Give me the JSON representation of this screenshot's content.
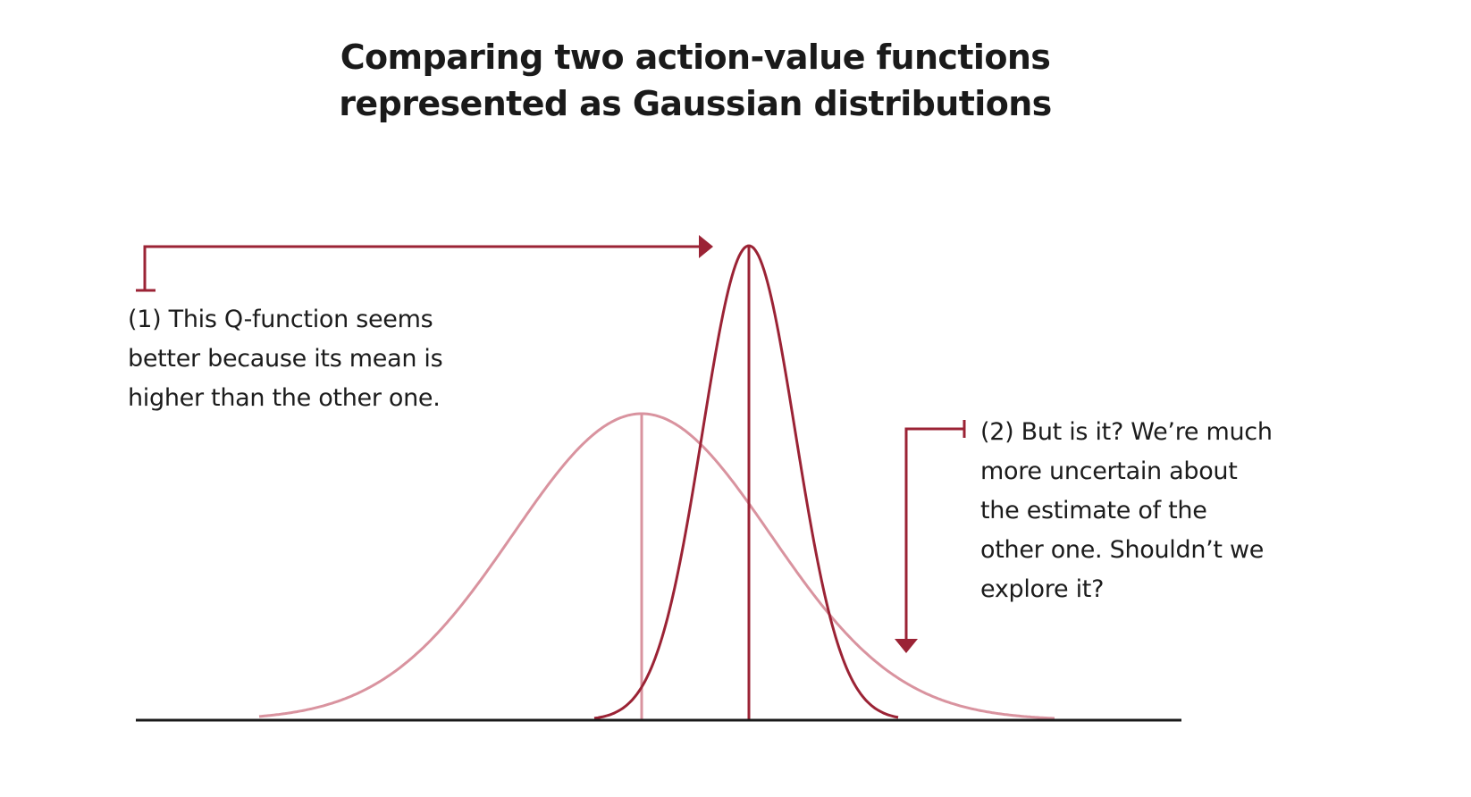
{
  "title": {
    "line1": "Comparing two action-value functions",
    "line2": "represented as Gaussian distributions"
  },
  "annotations": [
    {
      "number": "(1)",
      "lines": [
        "(1) This Q-function seems",
        "better because its mean is",
        "higher than the other one."
      ]
    },
    {
      "number": "(2)",
      "lines": [
        "(2) But is it? We’re much",
        "more uncertain about",
        "the estimate of the",
        "other one. Shouldn’t we",
        "explore it?"
      ]
    }
  ],
  "colors": {
    "narrow_curve": "#9b2335",
    "wide_curve": "#d9939f",
    "arrow": "#9b2335",
    "axis": "#1a1a1a",
    "text": "#1c1c1c"
  },
  "distributions": [
    {
      "id": "narrow",
      "mean_relative": 1.0,
      "spread": "narrow",
      "mean_line": true
    },
    {
      "id": "wide",
      "mean_relative": 0.0,
      "spread": "wide",
      "mean_line": true
    }
  ]
}
